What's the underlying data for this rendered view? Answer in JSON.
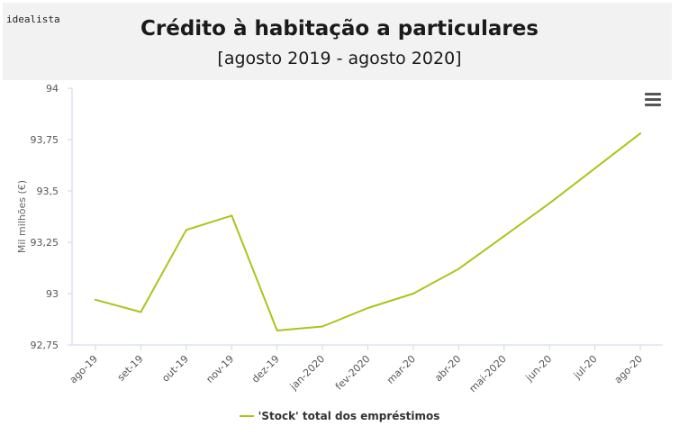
{
  "brand": "idealista",
  "chart_data": {
    "type": "line",
    "title": "Crédito à habitação a particulares",
    "subtitle": "[agosto 2019 - agosto 2020]",
    "ylabel": "Mil milhões (€)",
    "xlabel": "",
    "categories": [
      "ago-19",
      "set-19",
      "out-19",
      "nov-19",
      "dez-19",
      "jan-2020",
      "fev-2020",
      "mar-20",
      "abr-20",
      "mai-2020",
      "jun-20",
      "jul-20",
      "ago-20"
    ],
    "ylim": [
      92.75,
      94
    ],
    "yticks": [
      92.75,
      93,
      93.25,
      93.5,
      93.75,
      94
    ],
    "ytick_labels": [
      "92,75",
      "93",
      "93,25",
      "93,5",
      "93,75",
      "94"
    ],
    "grid": false,
    "legend_position": "bottom",
    "series": [
      {
        "name": "'Stock' total dos empréstimos",
        "color": "#a8c61a",
        "values": [
          92.97,
          92.91,
          93.31,
          93.38,
          92.82,
          92.84,
          92.93,
          93.0,
          93.12,
          93.28,
          93.44,
          93.61,
          93.78
        ]
      }
    ]
  },
  "menu_icon": "hamburger-menu-icon"
}
